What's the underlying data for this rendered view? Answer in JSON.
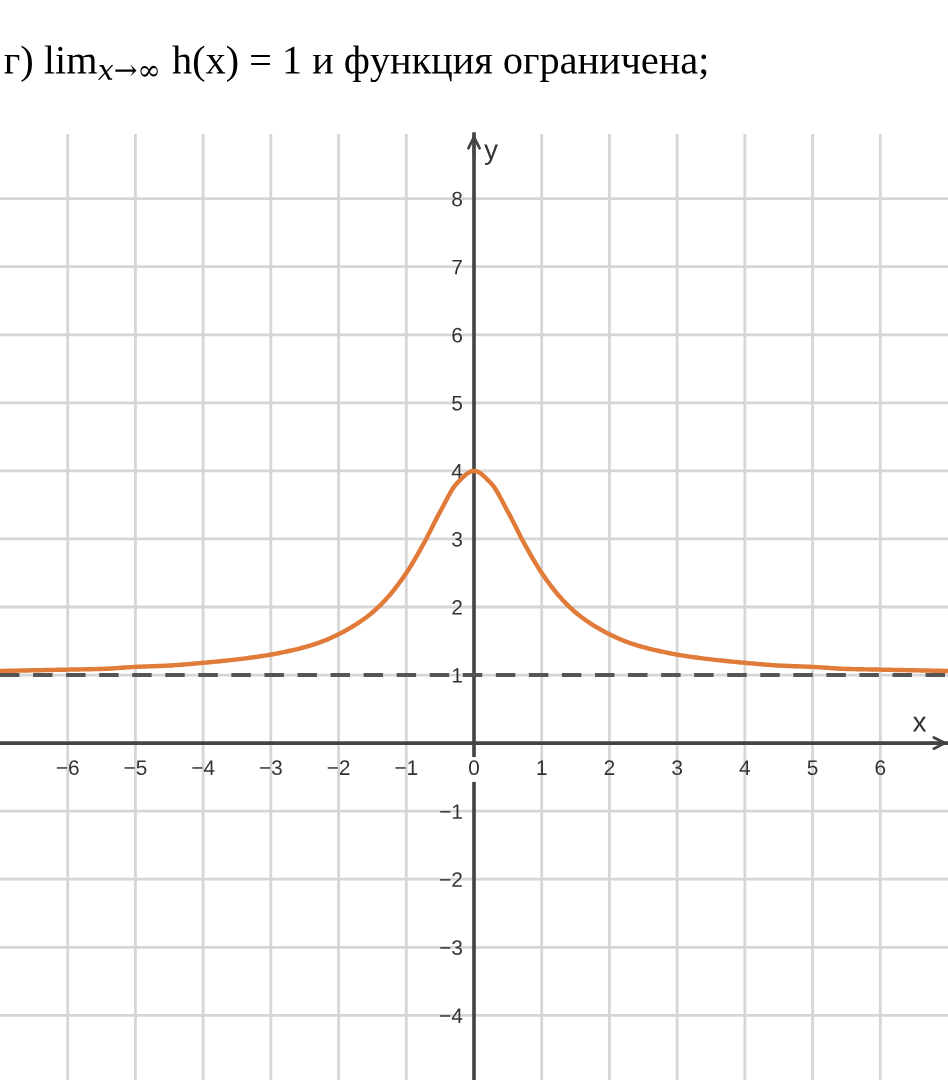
{
  "chart_data": {
    "type": "line",
    "title": "г) lim$_{x→∞}$ h(x) = 1 и функция ограничена;",
    "xlabel": "x",
    "ylabel": "y",
    "x": [
      -7,
      -6.5,
      -6,
      -5.5,
      -5,
      -4.5,
      -4,
      -3.5,
      -3,
      -2.75,
      -2.5,
      -2.25,
      -2,
      -1.75,
      -1.5,
      -1.25,
      -1,
      -0.75,
      -0.5,
      -0.25,
      0,
      0.25,
      0.5,
      0.75,
      1,
      1.25,
      1.5,
      1.75,
      2,
      2.25,
      2.5,
      2.75,
      3,
      3.5,
      4,
      4.5,
      5,
      5.5,
      6,
      6.5,
      7
    ],
    "series": [
      {
        "color": "#e07b39",
        "values": [
          1.06,
          1.07,
          1.08,
          1.09,
          1.12,
          1.14,
          1.18,
          1.23,
          1.3,
          1.35,
          1.41,
          1.49,
          1.6,
          1.74,
          1.92,
          2.17,
          2.5,
          2.92,
          3.4,
          3.82,
          4,
          3.82,
          3.4,
          2.92,
          2.5,
          2.17,
          1.92,
          1.74,
          1.6,
          1.49,
          1.41,
          1.35,
          1.3,
          1.23,
          1.18,
          1.14,
          1.12,
          1.09,
          1.08,
          1.07,
          1.06
        ]
      }
    ],
    "xlim": [
      -7,
      7
    ],
    "ylim": [
      -4.95,
      8.95
    ],
    "xticks": [
      -6,
      -5,
      -4,
      -3,
      -2,
      -1,
      0,
      1,
      2,
      3,
      4,
      5,
      6
    ],
    "yticks": [
      -4,
      -3,
      -2,
      -1,
      1,
      2,
      3,
      4,
      5,
      6,
      7,
      8
    ],
    "grid": true,
    "ref_lines": [
      {
        "axis": "y",
        "value": 1,
        "color": "#555555",
        "line_style": "dashed"
      }
    ]
  }
}
